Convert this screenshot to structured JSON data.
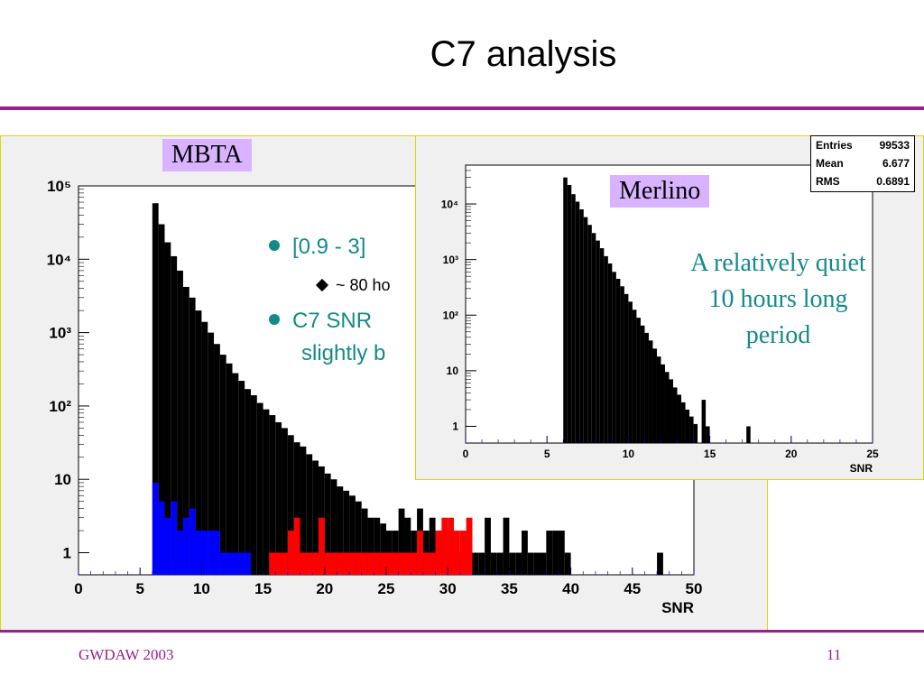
{
  "slide": {
    "title": "C7 analysis",
    "footer_left": "GWDAW 2003",
    "page_number": "11"
  },
  "colors": {
    "accent": "#9b1f8c",
    "text_teal": "#138a8a",
    "tag_bg": "#d9b3ff",
    "panel_border": "#d8d80a"
  },
  "bullets": [
    {
      "icon": "bullet-dot-icon",
      "text": "[0.9 - 3]"
    },
    {
      "icon": "diamond-icon",
      "text": "~ 80 ho"
    },
    {
      "icon": "bullet-dot-icon",
      "text": "C7 SNR"
    },
    {
      "icon": "",
      "text": "slightly b"
    }
  ],
  "mbta": {
    "tag": "MBTA",
    "chart_data": {
      "type": "bar",
      "xlabel": "SNR",
      "xlim": [
        0,
        50
      ],
      "ylog": true,
      "ylim": [
        0.5,
        100000
      ],
      "xticks": [
        "0",
        "5",
        "10",
        "15",
        "20",
        "25",
        "30",
        "35",
        "40",
        "45",
        "50"
      ],
      "yticks": [
        "1",
        "10",
        "10²",
        "10³",
        "10⁴",
        "10⁵"
      ],
      "bin_width": 0.5,
      "series": [
        {
          "color": "#000000",
          "x_start": 6,
          "values": [
            58000,
            30000,
            17000,
            11000,
            7000,
            4200,
            3000,
            2000,
            1400,
            1000,
            700,
            500,
            380,
            280,
            220,
            170,
            140,
            110,
            90,
            75,
            60,
            50,
            40,
            32,
            28,
            22,
            18,
            15,
            12,
            10,
            8,
            7,
            6,
            5,
            4,
            3,
            3,
            2.5,
            2,
            2,
            4,
            3,
            2,
            4,
            2,
            3,
            2,
            1,
            2,
            1,
            1,
            2,
            1,
            1,
            3,
            1,
            1,
            3,
            1,
            1,
            2,
            1,
            1,
            1,
            2,
            2,
            2,
            1,
            0,
            0,
            0,
            0,
            0,
            0,
            0,
            0,
            0,
            0,
            0,
            0,
            0,
            0,
            1
          ]
        },
        {
          "color": "#0000ff",
          "x_start": 6,
          "values": [
            9,
            5,
            3,
            5,
            2,
            3,
            4,
            2,
            2,
            2,
            2,
            1,
            1,
            1,
            1,
            1
          ]
        },
        {
          "color": "#ff0000",
          "x_start": 15.5,
          "values": [
            1,
            1,
            1,
            2,
            3,
            1,
            1,
            1,
            3,
            1,
            1,
            1,
            1,
            1,
            1,
            1,
            1,
            1,
            1,
            1,
            1,
            1,
            1,
            1,
            2,
            1,
            1,
            2,
            3,
            3,
            2,
            2,
            3
          ]
        }
      ]
    }
  },
  "merlino": {
    "tag": "Merlino",
    "note": "A relatively quiet 10 hours long period",
    "stats": [
      {
        "label": "Entries",
        "value": "99533"
      },
      {
        "label": "Mean",
        "value": "6.677"
      },
      {
        "label": "RMS",
        "value": "0.6891"
      }
    ],
    "chart_data": {
      "type": "bar",
      "xlabel": "SNR",
      "xlim": [
        0,
        25
      ],
      "ylog": true,
      "ylim": [
        0.5,
        50000
      ],
      "xticks": [
        "0",
        "5",
        "10",
        "15",
        "20",
        "25"
      ],
      "yticks": [
        "1",
        "10",
        "10²",
        "10³",
        "10⁴"
      ],
      "bin_width": 0.25,
      "series": [
        {
          "color": "#000000",
          "x_start": 6,
          "values": [
            30000,
            22000,
            15000,
            11000,
            8000,
            5800,
            4200,
            3000,
            2200,
            1600,
            1150,
            850,
            600,
            450,
            330,
            240,
            175,
            125,
            90,
            65,
            48,
            35,
            25,
            18,
            13,
            9.5,
            7,
            5,
            3.7,
            2.7,
            2,
            1.5,
            1.1,
            0,
            3,
            1,
            0,
            0,
            0,
            0,
            0,
            0,
            0,
            0,
            0,
            1
          ]
        }
      ]
    }
  }
}
